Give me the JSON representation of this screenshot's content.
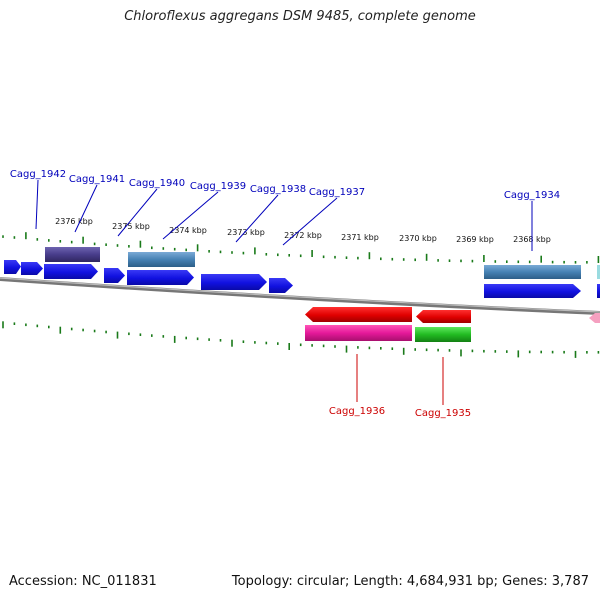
{
  "title": "Chloroflexus aggregans DSM 9485, complete genome",
  "footer": {
    "accession": "Accession: NC_011831",
    "summary": "Topology: circular; Length: 4,684,931 bp; Genes: 3,787"
  },
  "scale": {
    "tick_labels": [
      "2376 kbp",
      "2375 kbp",
      "2374 kbp",
      "2373 kbp",
      "2372 kbp",
      "2371 kbp",
      "2370 kbp",
      "2369 kbp",
      "2368 kbp"
    ]
  },
  "colors": {
    "forward_cds": "#1515e0",
    "reverse_cds": "#e00000",
    "forward_label": "#0000bb",
    "reverse_label": "#cc0000",
    "tick": "#1a7a1a",
    "backbone": "#8a8a8a"
  },
  "gene_labels": {
    "forward": [
      "Cagg_1942",
      "Cagg_1941",
      "Cagg_1940",
      "Cagg_1939",
      "Cagg_1938",
      "Cagg_1937",
      "Cagg_1934"
    ],
    "reverse": [
      "Cagg_1936",
      "Cagg_1935"
    ]
  }
}
